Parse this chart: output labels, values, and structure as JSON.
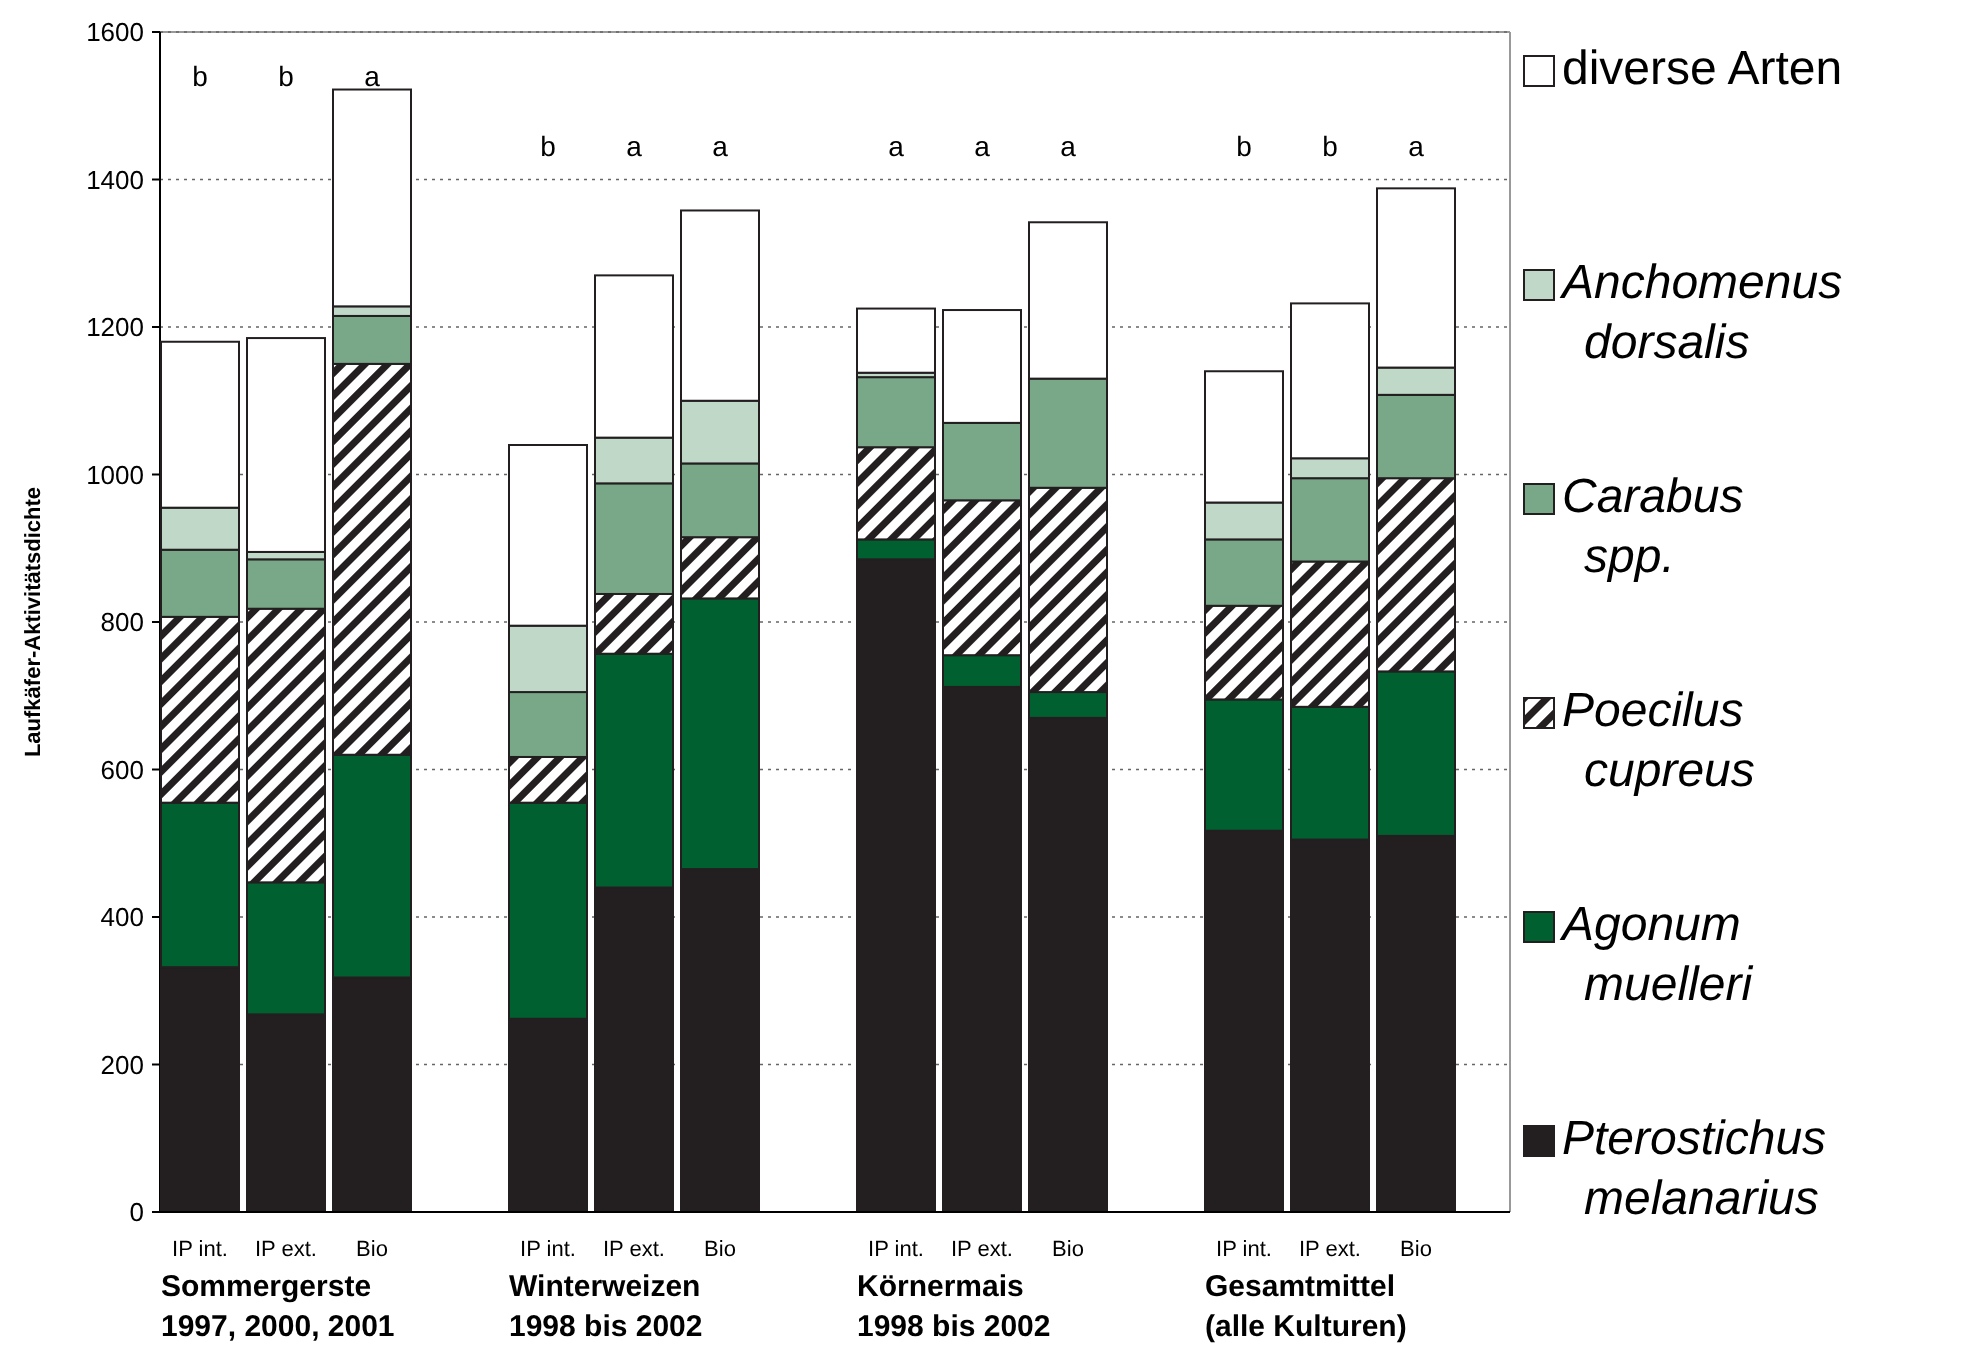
{
  "chart_data": {
    "type": "bar",
    "stacked": true,
    "ylabel": "Laufkäfer-Aktivitätsdichte",
    "categories": [
      "IP int.",
      "IP ext.",
      "Bio",
      "IP int.",
      "IP ext.",
      "Bio",
      "IP int.",
      "IP ext.",
      "Bio",
      "IP int.",
      "IP ext.",
      "Bio"
    ],
    "series": [
      {
        "name": "Pterostichus melanarius",
        "color": "#231f20",
        "values": [
          332,
          268,
          318,
          262,
          440,
          465,
          885,
          712,
          670,
          517,
          505,
          510
        ]
      },
      {
        "name": "Agonum muelleri",
        "color": "#006030",
        "values": [
          223,
          179,
          302,
          293,
          317,
          367,
          27,
          43,
          35,
          178,
          180,
          223
        ]
      },
      {
        "name": "Poecilus cupreus",
        "color": "#231f20",
        "values": [
          252,
          371,
          530,
          62,
          81,
          83,
          125,
          210,
          277,
          127,
          197,
          262
        ]
      },
      {
        "name": "Carabus spp.",
        "color": "#78a888",
        "values": [
          91,
          67,
          65,
          88,
          150,
          100,
          95,
          105,
          148,
          90,
          113,
          113
        ]
      },
      {
        "name": "Anchomenus dorsalis",
        "color": "#c0d8c8",
        "values": [
          57,
          10,
          13,
          90,
          62,
          85,
          6,
          null,
          null,
          50,
          27,
          37
        ]
      },
      {
        "name": "diverse Arten",
        "color": "#ffffff",
        "values": [
          225,
          290,
          294,
          245,
          220,
          258,
          87,
          153,
          212,
          178,
          210,
          243
        ]
      }
    ],
    "ylim": [
      0,
      1600
    ],
    "yticks": [
      0,
      200,
      400,
      600,
      800,
      1000,
      1200,
      1400,
      1600
    ],
    "grid": "y",
    "legend": "right",
    "annotations": [
      "Sommergerste\n1997, 2000, 2001",
      "Winterweizen\n1998 bis 2002",
      "Körnermais\n1998 bis 2002",
      "Gesamtmittel\n(alle Kulturen)",
      "b",
      "b",
      "a",
      "b",
      "a",
      "a",
      "a",
      "a",
      "a",
      "b",
      "b",
      "a"
    ]
  }
}
